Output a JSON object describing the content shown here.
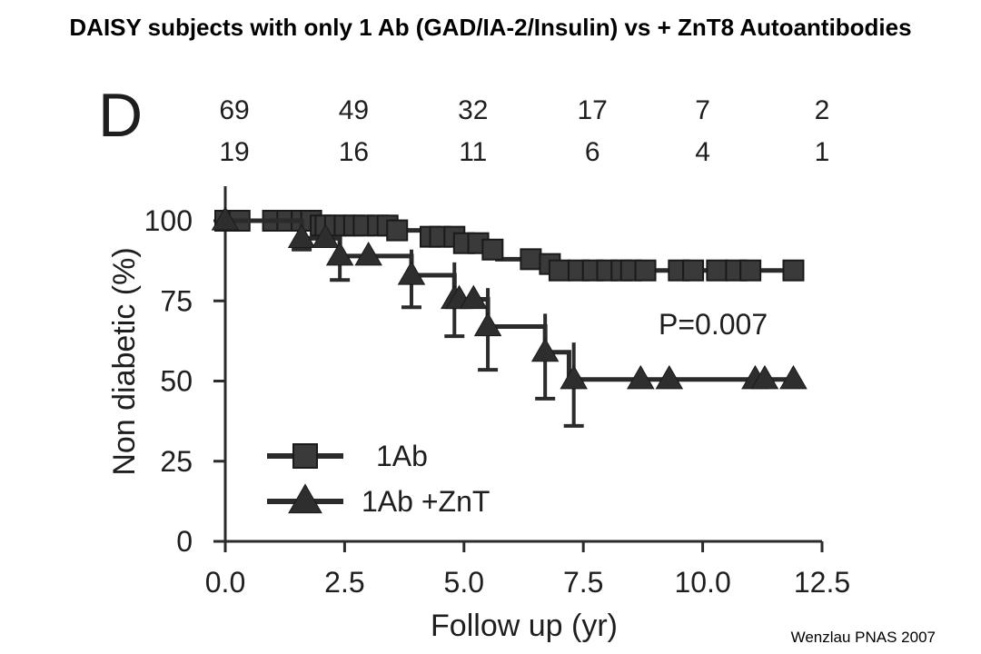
{
  "slide": {
    "title": "DAISY subjects with only 1 Ab (GAD/IA-2/Insulin) vs + ZnT8 Autoantibodies",
    "citation": "Wenzlau PNAS 2007"
  },
  "chart_data": {
    "type": "line",
    "panel_label": "D",
    "xlabel": "Follow up (yr)",
    "ylabel": "Non diabetic (%)",
    "xlim": [
      0,
      12.5
    ],
    "ylim": [
      0,
      100
    ],
    "x_ticks": [
      "0.0",
      "2.5",
      "5.0",
      "7.5",
      "10.0",
      "12.5"
    ],
    "x_tick_values": [
      0,
      2.5,
      5,
      7.5,
      10,
      12.5
    ],
    "y_ticks": [
      "0",
      "25",
      "50",
      "75",
      "100"
    ],
    "y_tick_values": [
      0,
      25,
      50,
      75,
      100
    ],
    "annotation": "P=0.007",
    "legend_position": "bottom-left",
    "color": "#2b2b2b",
    "at_risk": {
      "times": [
        0,
        2.5,
        5,
        7.5,
        10,
        12.5
      ],
      "rows": [
        [
          "69",
          "49",
          "32",
          "17",
          "7",
          "2"
        ],
        [
          "19",
          "16",
          "11",
          "6",
          "4",
          "1"
        ]
      ]
    },
    "series": [
      {
        "name": "1Ab",
        "marker": "square",
        "steps": [
          [
            0,
            100
          ],
          [
            2.0,
            98.5
          ],
          [
            3.6,
            97
          ],
          [
            4.2,
            95
          ],
          [
            5.0,
            93
          ],
          [
            5.5,
            91
          ],
          [
            5.7,
            88
          ],
          [
            6.5,
            86.5
          ],
          [
            6.9,
            84.5
          ],
          [
            11.9,
            84.5
          ]
        ],
        "markers_x": [
          0,
          0.3,
          1.0,
          1.3,
          1.6,
          1.8,
          2.0,
          2.1,
          2.3,
          2.5,
          2.7,
          2.9,
          3.2,
          3.4,
          3.6,
          4.3,
          4.5,
          4.8,
          5.0,
          5.3,
          5.6,
          6.4,
          6.8,
          7.0,
          7.4,
          7.7,
          8.0,
          8.3,
          8.5,
          8.8,
          9.5,
          9.8,
          10.3,
          10.7,
          11.0,
          11.9
        ]
      },
      {
        "name": "1Ab +ZnT",
        "marker": "triangle",
        "steps": [
          [
            0,
            100
          ],
          [
            1.6,
            94.5
          ],
          [
            2.0,
            94.5
          ],
          [
            2.4,
            89
          ],
          [
            3.9,
            83
          ],
          [
            4.8,
            75.5
          ],
          [
            5.5,
            67
          ],
          [
            6.7,
            59
          ],
          [
            7.2,
            50.5
          ],
          [
            12.0,
            50.5
          ]
        ],
        "markers_x": [
          0,
          1.6,
          2.1,
          2.4,
          3.0,
          3.9,
          4.8,
          4.9,
          5.2,
          5.5,
          6.7,
          7.3,
          8.7,
          9.3,
          11.1,
          11.3,
          11.9
        ],
        "error_bars": [
          {
            "x": 1.6,
            "low": 91,
            "high": 97
          },
          {
            "x": 2.4,
            "low": 81.5,
            "high": 95
          },
          {
            "x": 3.9,
            "low": 73,
            "high": 91
          },
          {
            "x": 4.8,
            "low": 64,
            "high": 87
          },
          {
            "x": 5.5,
            "low": 53.5,
            "high": 79
          },
          {
            "x": 6.7,
            "low": 44.5,
            "high": 71
          },
          {
            "x": 7.3,
            "low": 36,
            "high": 62
          }
        ]
      }
    ]
  }
}
